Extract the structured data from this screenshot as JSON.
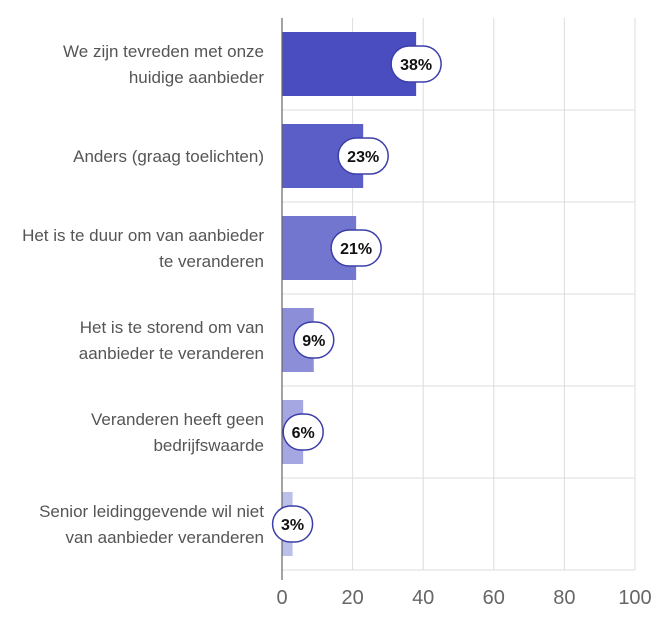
{
  "chart_data": {
    "type": "bar",
    "orientation": "horizontal",
    "categories": [
      [
        "We zijn tevreden met onze",
        "huidige aanbieder"
      ],
      [
        "Anders (graag toelichten)"
      ],
      [
        "Het is te duur om van aanbieder",
        "te veranderen"
      ],
      [
        "Het is te storend om van",
        "aanbieder te veranderen"
      ],
      [
        "Veranderen heeft geen",
        "bedrijfswaarde"
      ],
      [
        "Senior leidinggevende wil niet",
        "van aanbieder veranderen"
      ]
    ],
    "values": [
      38,
      23,
      21,
      9,
      6,
      3
    ],
    "value_labels": [
      "38%",
      "23%",
      "21%",
      "9%",
      "6%",
      "3%"
    ],
    "xlim": [
      0,
      100
    ],
    "xticks": [
      "0",
      "20",
      "40",
      "60",
      "80",
      "100"
    ],
    "grid": true,
    "colors": {
      "bars": [
        "#4a4dbf",
        "#5b5ec6",
        "#7376cf",
        "#8c8fd8",
        "#a5a7e2",
        "#bdbfeb"
      ],
      "pill_border": "#3b3ea8",
      "grid": "#dcdcdc"
    }
  }
}
